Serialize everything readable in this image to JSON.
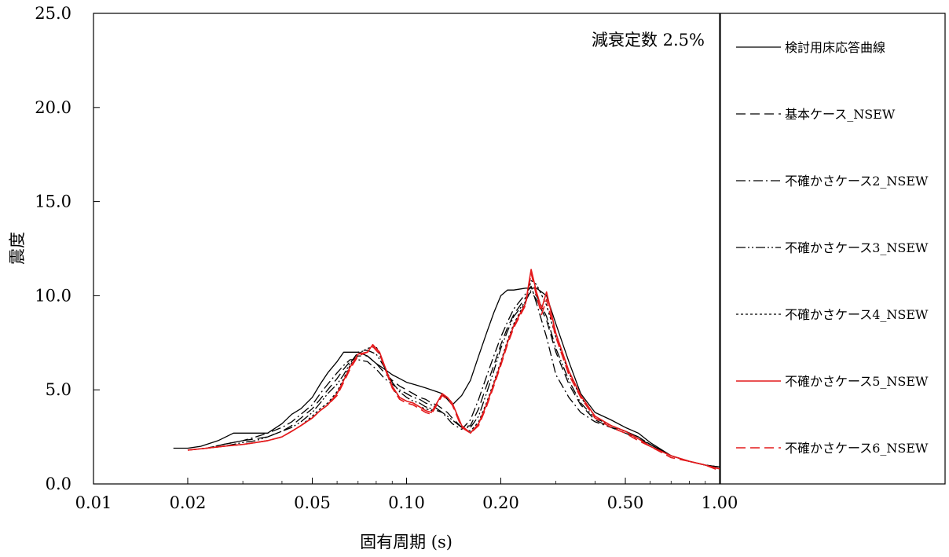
{
  "chart_data": {
    "type": "line",
    "x_scale": "log",
    "xlim": [
      0.01,
      1.0
    ],
    "ylim": [
      0,
      25
    ],
    "x_ticks": [
      0.01,
      0.02,
      0.05,
      0.1,
      0.2,
      0.5,
      1.0
    ],
    "x_tick_labels": [
      "0.01",
      "0.02",
      "0.05",
      "0.10",
      "0.20",
      "0.50",
      "1.00"
    ],
    "y_ticks": [
      0,
      5,
      10,
      15,
      20,
      25
    ],
    "y_tick_labels": [
      "0.0",
      "5.0",
      "10.0",
      "15.0",
      "20.0",
      "25.0"
    ],
    "xlabel": "固有周期 (s)",
    "ylabel": "震度",
    "annotation": "減衰定数 2.5%",
    "grid": false,
    "legend_position": "right",
    "series": [
      {
        "name": "検討用床応答曲線",
        "color": "#000000",
        "dash": "solid",
        "x": [
          0.018,
          0.02,
          0.022,
          0.025,
          0.028,
          0.03,
          0.033,
          0.036,
          0.04,
          0.043,
          0.046,
          0.05,
          0.053,
          0.056,
          0.06,
          0.063,
          0.066,
          0.07,
          0.075,
          0.08,
          0.085,
          0.09,
          0.095,
          0.1,
          0.105,
          0.11,
          0.115,
          0.12,
          0.125,
          0.13,
          0.135,
          0.14,
          0.15,
          0.16,
          0.17,
          0.18,
          0.19,
          0.2,
          0.21,
          0.22,
          0.24,
          0.26,
          0.28,
          0.3,
          0.33,
          0.36,
          0.4,
          0.45,
          0.5,
          0.55,
          0.6,
          0.7,
          0.8,
          0.9,
          1.0
        ],
        "y": [
          1.9,
          1.9,
          2.0,
          2.3,
          2.7,
          2.7,
          2.7,
          2.7,
          3.2,
          3.7,
          4.0,
          4.6,
          5.3,
          5.9,
          6.5,
          7.0,
          7.0,
          7.0,
          6.8,
          6.4,
          6.1,
          5.8,
          5.6,
          5.4,
          5.3,
          5.2,
          5.1,
          5.0,
          4.9,
          4.8,
          4.5,
          4.2,
          4.7,
          5.5,
          6.8,
          8.0,
          9.1,
          10.0,
          10.3,
          10.3,
          10.4,
          10.4,
          10.0,
          8.5,
          6.5,
          4.8,
          3.8,
          3.4,
          3.0,
          2.7,
          2.2,
          1.5,
          1.2,
          1.0,
          0.9
        ]
      },
      {
        "name": "基本ケース_NSEW",
        "color": "#000000",
        "dash": "12,6",
        "x": [
          0.02,
          0.023,
          0.026,
          0.03,
          0.033,
          0.036,
          0.04,
          0.043,
          0.046,
          0.05,
          0.053,
          0.056,
          0.06,
          0.063,
          0.066,
          0.07,
          0.075,
          0.08,
          0.085,
          0.09,
          0.095,
          0.1,
          0.105,
          0.11,
          0.115,
          0.12,
          0.125,
          0.13,
          0.135,
          0.14,
          0.15,
          0.16,
          0.17,
          0.18,
          0.19,
          0.2,
          0.21,
          0.22,
          0.24,
          0.25,
          0.26,
          0.28,
          0.3,
          0.33,
          0.36,
          0.4,
          0.45,
          0.5,
          0.55,
          0.6,
          0.7,
          0.8,
          0.9,
          1.0
        ],
        "y": [
          1.8,
          1.9,
          2.1,
          2.3,
          2.4,
          2.5,
          2.8,
          3.1,
          3.5,
          4.0,
          4.5,
          5.0,
          5.6,
          6.1,
          6.5,
          6.8,
          6.8,
          6.4,
          5.9,
          5.5,
          5.2,
          5.0,
          4.8,
          4.6,
          4.5,
          4.3,
          4.2,
          4.0,
          3.8,
          3.5,
          3.0,
          3.1,
          4.0,
          5.2,
          6.3,
          7.4,
          8.3,
          9.0,
          9.9,
          10.2,
          9.8,
          8.7,
          7.0,
          5.3,
          4.2,
          3.4,
          3.0,
          2.8,
          2.5,
          2.1,
          1.5,
          1.2,
          1.0,
          0.9
        ]
      },
      {
        "name": "不確かさケース2_NSEW",
        "color": "#000000",
        "dash": "12,4,2,4",
        "x": [
          0.02,
          0.023,
          0.026,
          0.03,
          0.033,
          0.036,
          0.04,
          0.043,
          0.046,
          0.05,
          0.053,
          0.056,
          0.06,
          0.063,
          0.066,
          0.07,
          0.075,
          0.08,
          0.085,
          0.09,
          0.095,
          0.1,
          0.105,
          0.11,
          0.115,
          0.12,
          0.125,
          0.13,
          0.135,
          0.14,
          0.15,
          0.16,
          0.17,
          0.18,
          0.19,
          0.2,
          0.21,
          0.22,
          0.24,
          0.25,
          0.26,
          0.28,
          0.3,
          0.33,
          0.36,
          0.4,
          0.45,
          0.5,
          0.55,
          0.6,
          0.7,
          0.8,
          0.9,
          1.0
        ],
        "y": [
          1.8,
          1.9,
          2.1,
          2.3,
          2.5,
          2.7,
          3.0,
          3.3,
          3.7,
          4.2,
          4.8,
          5.3,
          5.9,
          6.3,
          6.6,
          6.6,
          6.5,
          6.1,
          5.6,
          5.3,
          5.0,
          4.8,
          4.6,
          4.5,
          4.3,
          4.2,
          4.0,
          3.8,
          3.5,
          3.2,
          2.9,
          3.4,
          4.5,
          5.7,
          6.8,
          7.8,
          8.6,
          9.3,
          10.1,
          10.5,
          9.6,
          7.8,
          5.8,
          4.6,
          3.8,
          3.3,
          3.0,
          2.7,
          2.4,
          2.1,
          1.5,
          1.2,
          1.0,
          0.9
        ]
      },
      {
        "name": "不確かさケース3_NSEW",
        "color": "#000000",
        "dash": "12,3,2,3,2,3",
        "x": [
          0.02,
          0.023,
          0.026,
          0.03,
          0.033,
          0.036,
          0.04,
          0.043,
          0.046,
          0.05,
          0.053,
          0.056,
          0.06,
          0.063,
          0.066,
          0.07,
          0.075,
          0.08,
          0.085,
          0.09,
          0.095,
          0.1,
          0.105,
          0.11,
          0.115,
          0.12,
          0.125,
          0.13,
          0.135,
          0.14,
          0.15,
          0.16,
          0.17,
          0.18,
          0.19,
          0.2,
          0.21,
          0.22,
          0.24,
          0.25,
          0.26,
          0.28,
          0.3,
          0.33,
          0.36,
          0.4,
          0.45,
          0.5,
          0.55,
          0.6,
          0.7,
          0.8,
          0.9,
          1.0
        ],
        "y": [
          1.8,
          1.9,
          2.0,
          2.2,
          2.3,
          2.5,
          2.8,
          3.0,
          3.3,
          3.8,
          4.3,
          4.8,
          5.3,
          5.8,
          6.4,
          7.0,
          7.1,
          6.9,
          6.2,
          5.4,
          4.9,
          4.6,
          4.4,
          4.3,
          4.1,
          4.0,
          3.9,
          3.8,
          3.6,
          3.4,
          3.0,
          3.0,
          3.6,
          4.8,
          6.0,
          7.2,
          8.1,
          8.9,
          9.7,
          10.3,
          10.0,
          8.9,
          7.2,
          5.5,
          4.3,
          3.5,
          3.1,
          2.8,
          2.5,
          2.1,
          1.5,
          1.2,
          1.0,
          0.9
        ]
      },
      {
        "name": "不確かさケース4_NSEW",
        "color": "#000000",
        "dash": "3,3",
        "x": [
          0.02,
          0.023,
          0.026,
          0.03,
          0.033,
          0.036,
          0.04,
          0.043,
          0.046,
          0.05,
          0.053,
          0.056,
          0.06,
          0.063,
          0.066,
          0.07,
          0.075,
          0.08,
          0.085,
          0.09,
          0.095,
          0.1,
          0.105,
          0.11,
          0.115,
          0.12,
          0.125,
          0.13,
          0.135,
          0.14,
          0.15,
          0.16,
          0.17,
          0.18,
          0.19,
          0.2,
          0.21,
          0.22,
          0.24,
          0.25,
          0.26,
          0.28,
          0.3,
          0.33,
          0.36,
          0.4,
          0.45,
          0.5,
          0.55,
          0.6,
          0.7,
          0.8,
          0.9,
          1.0
        ],
        "y": [
          1.8,
          1.9,
          2.0,
          2.1,
          2.2,
          2.3,
          2.5,
          2.8,
          3.1,
          3.6,
          4.0,
          4.3,
          4.9,
          5.6,
          6.3,
          6.9,
          7.2,
          7.3,
          6.2,
          5.1,
          4.6,
          4.4,
          4.3,
          4.1,
          4.0,
          3.9,
          4.3,
          4.7,
          4.6,
          4.3,
          3.0,
          2.8,
          3.3,
          4.3,
          5.4,
          6.5,
          7.6,
          8.5,
          9.7,
          10.8,
          10.6,
          9.5,
          7.8,
          5.9,
          4.6,
          3.6,
          3.1,
          2.8,
          2.4,
          2.1,
          1.5,
          1.2,
          1.0,
          0.8
        ]
      },
      {
        "name": "不確かさケース5_NSEW",
        "color": "#e41a1c",
        "dash": "solid",
        "x": [
          0.02,
          0.023,
          0.026,
          0.03,
          0.033,
          0.036,
          0.04,
          0.043,
          0.046,
          0.05,
          0.053,
          0.056,
          0.06,
          0.063,
          0.066,
          0.07,
          0.075,
          0.078,
          0.082,
          0.085,
          0.09,
          0.095,
          0.1,
          0.105,
          0.11,
          0.115,
          0.12,
          0.125,
          0.13,
          0.135,
          0.14,
          0.15,
          0.16,
          0.17,
          0.18,
          0.19,
          0.2,
          0.21,
          0.22,
          0.24,
          0.25,
          0.26,
          0.27,
          0.28,
          0.3,
          0.33,
          0.36,
          0.4,
          0.45,
          0.5,
          0.55,
          0.6,
          0.7,
          0.8,
          0.9,
          1.0
        ],
        "y": [
          1.8,
          1.9,
          2.0,
          2.1,
          2.2,
          2.3,
          2.5,
          2.8,
          3.1,
          3.5,
          3.9,
          4.2,
          4.8,
          5.5,
          6.2,
          6.9,
          7.0,
          7.4,
          7.0,
          6.3,
          5.2,
          4.6,
          4.4,
          4.3,
          4.1,
          3.9,
          3.8,
          4.3,
          4.8,
          4.6,
          4.3,
          3.1,
          2.7,
          3.2,
          4.2,
          5.3,
          6.4,
          7.5,
          8.4,
          9.6,
          11.4,
          10.2,
          9.3,
          10.2,
          8.0,
          6.0,
          4.7,
          3.6,
          3.1,
          2.8,
          2.4,
          2.0,
          1.5,
          1.2,
          1.0,
          0.8
        ]
      },
      {
        "name": "不確かさケース6_NSEW",
        "color": "#e41a1c",
        "dash": "12,6",
        "x": [
          0.02,
          0.023,
          0.026,
          0.03,
          0.033,
          0.036,
          0.04,
          0.043,
          0.046,
          0.05,
          0.053,
          0.056,
          0.06,
          0.063,
          0.066,
          0.07,
          0.075,
          0.078,
          0.082,
          0.085,
          0.09,
          0.095,
          0.1,
          0.105,
          0.11,
          0.115,
          0.12,
          0.125,
          0.13,
          0.135,
          0.14,
          0.15,
          0.16,
          0.17,
          0.18,
          0.19,
          0.2,
          0.21,
          0.22,
          0.24,
          0.25,
          0.26,
          0.27,
          0.28,
          0.3,
          0.33,
          0.36,
          0.4,
          0.45,
          0.5,
          0.55,
          0.6,
          0.7,
          0.8,
          0.9,
          1.0
        ],
        "y": [
          1.8,
          1.9,
          2.0,
          2.1,
          2.2,
          2.3,
          2.5,
          2.8,
          3.1,
          3.5,
          3.9,
          4.2,
          4.7,
          5.4,
          6.1,
          6.8,
          7.0,
          7.3,
          6.9,
          6.2,
          5.1,
          4.5,
          4.3,
          4.2,
          4.0,
          3.8,
          3.7,
          4.2,
          4.7,
          4.5,
          4.2,
          3.0,
          2.7,
          3.1,
          4.1,
          5.2,
          6.3,
          7.4,
          8.3,
          9.5,
          11.2,
          10.0,
          9.0,
          9.8,
          7.8,
          5.8,
          4.6,
          3.5,
          3.0,
          2.7,
          2.3,
          2.0,
          1.4,
          1.2,
          1.0,
          0.7
        ]
      }
    ]
  }
}
